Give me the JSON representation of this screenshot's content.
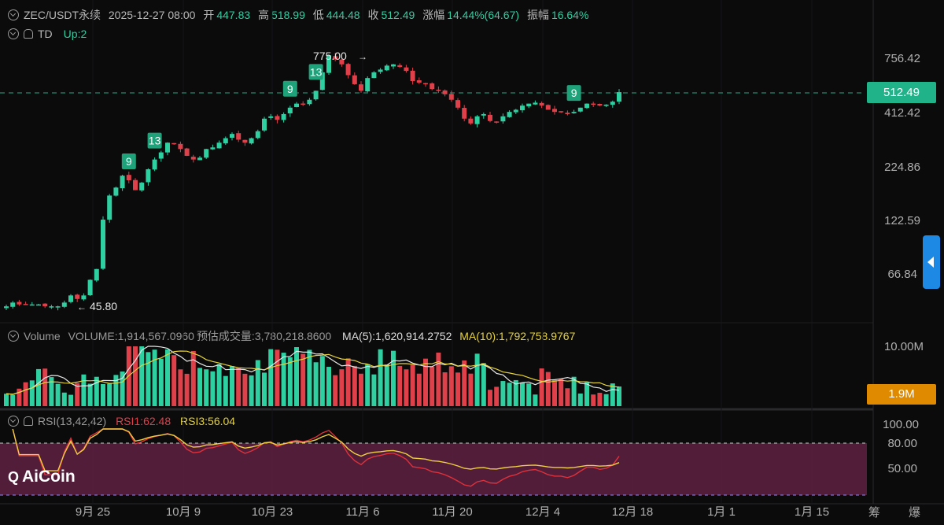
{
  "header": {
    "symbol": "ZEC/USDT永续",
    "datetime": "2025-12-27 08:00",
    "open_label": "开",
    "open": "447.83",
    "high_label": "高",
    "high": "518.99",
    "low_label": "低",
    "low": "444.48",
    "close_label": "收",
    "close": "512.49",
    "change_label": "涨幅",
    "change": "14.44%(64.67)",
    "amp_label": "振幅",
    "amp": "16.64%"
  },
  "td": {
    "label": "TD",
    "value": "Up:2"
  },
  "volume_header": {
    "label": "Volume",
    "volume": "VOLUME:1,914,567.0960",
    "estimate": "预估成交量:3,780,218.8600",
    "ma5": "MA(5):1,620,914.2752",
    "ma10": "MA(10):1,792,758.9767"
  },
  "rsi_header": {
    "label": "RSI(13,42,42)",
    "rsi1": "RSI1:62.48",
    "rsi3": "RSI3:56.04"
  },
  "price_axis": [
    "756.42",
    "412.42",
    "224.86",
    "122.59",
    "66.84"
  ],
  "volume_axis": [
    "10.00M"
  ],
  "rsi_axis": [
    "100.00",
    "80.00",
    "50.00"
  ],
  "current_price": "512.49",
  "current_volume": "1.9M",
  "annotations": {
    "max": "775.00",
    "min": "45.80"
  },
  "td_counts": [
    "9",
    "13",
    "9",
    "13",
    "9"
  ],
  "x_labels": [
    "9月 25",
    "10月 9",
    "10月 23",
    "11月 6",
    "11月 20",
    "12月 4",
    "12月 18",
    "1月 1",
    "1月 15"
  ],
  "corner_text": "筹 爆",
  "brand": "AiCoin",
  "colors": {
    "up": "#2ecfa0",
    "down": "#e0404a",
    "ma5": "#e8e8e8",
    "ma10": "#e6d23a",
    "rsi1": "#e0303a",
    "rsi3": "#f0d040",
    "rsi_zone": "#5a1f3e"
  },
  "chart_data": {
    "type": "candlestick",
    "log_scale": true,
    "x_start": "2025-09-10",
    "interval": "1d",
    "ohlc_closes_approx": [
      46,
      48,
      47,
      47,
      47,
      47,
      46,
      46,
      46,
      48,
      52,
      50,
      52,
      62,
      70,
      122,
      160,
      175,
      200,
      190,
      170,
      185,
      215,
      240,
      260,
      290,
      285,
      270,
      250,
      240,
      245,
      270,
      275,
      290,
      305,
      320,
      300,
      290,
      305,
      330,
      380,
      390,
      375,
      400,
      430,
      450,
      445,
      470,
      520,
      640,
      775,
      740,
      700,
      620,
      560,
      520,
      600,
      640,
      660,
      690,
      700,
      680,
      650,
      580,
      570,
      560,
      530,
      520,
      500,
      470,
      430,
      380,
      360,
      390,
      400,
      370,
      365,
      390,
      410,
      420,
      440,
      450,
      455,
      440,
      420,
      410,
      410,
      400,
      410,
      430,
      450,
      450,
      440,
      445,
      460,
      512
    ],
    "volume_header_values": {
      "volume": 1914567.096,
      "estimate": 3780218.86,
      "ma5": 1620914.2752,
      "ma10": 1792758.9767
    },
    "rsi": {
      "rsi1": 62.48,
      "rsi3": 56.04
    }
  }
}
